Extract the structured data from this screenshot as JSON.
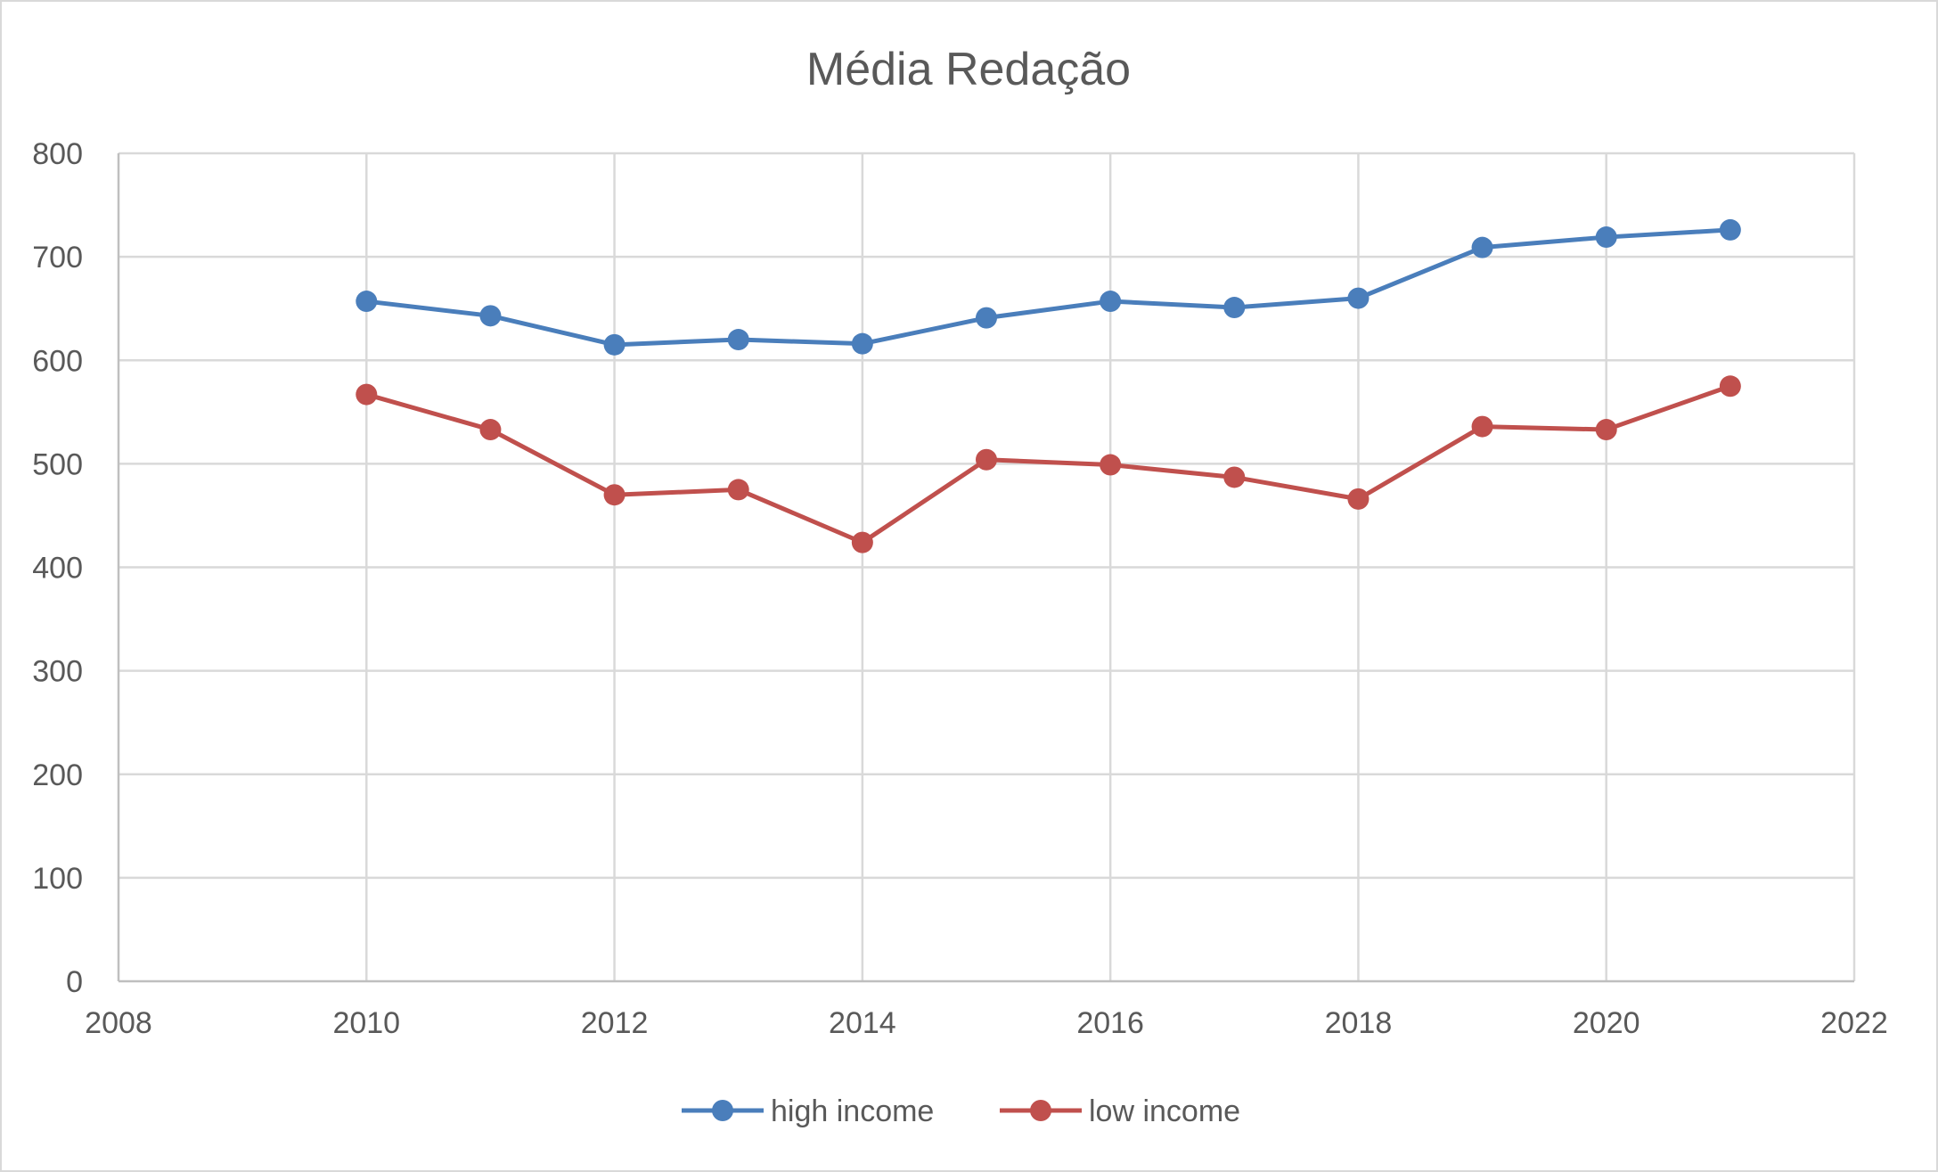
{
  "chart_data": {
    "type": "line",
    "title": "Média Redação",
    "xlabel": "",
    "ylabel": "",
    "xlim": [
      2008,
      2022
    ],
    "ylim": [
      0,
      800
    ],
    "x_ticks": [
      "2008",
      "2010",
      "2012",
      "2014",
      "2016",
      "2018",
      "2020",
      "2022"
    ],
    "y_ticks": [
      "0",
      "100",
      "200",
      "300",
      "400",
      "500",
      "600",
      "700",
      "800"
    ],
    "grid": true,
    "legend_position": "bottom",
    "x": [
      2010,
      2011,
      2012,
      2013,
      2014,
      2015,
      2016,
      2017,
      2018,
      2019,
      2020,
      2021
    ],
    "series": [
      {
        "name": "high income",
        "color": "#4a7ebb",
        "values": [
          657,
          643,
          615,
          620,
          616,
          641,
          657,
          651,
          660,
          709,
          719,
          726
        ]
      },
      {
        "name": "low income",
        "color": "#c0504d",
        "values": [
          567,
          533,
          470,
          475,
          424,
          504,
          499,
          487,
          466,
          536,
          533,
          575
        ]
      }
    ]
  }
}
